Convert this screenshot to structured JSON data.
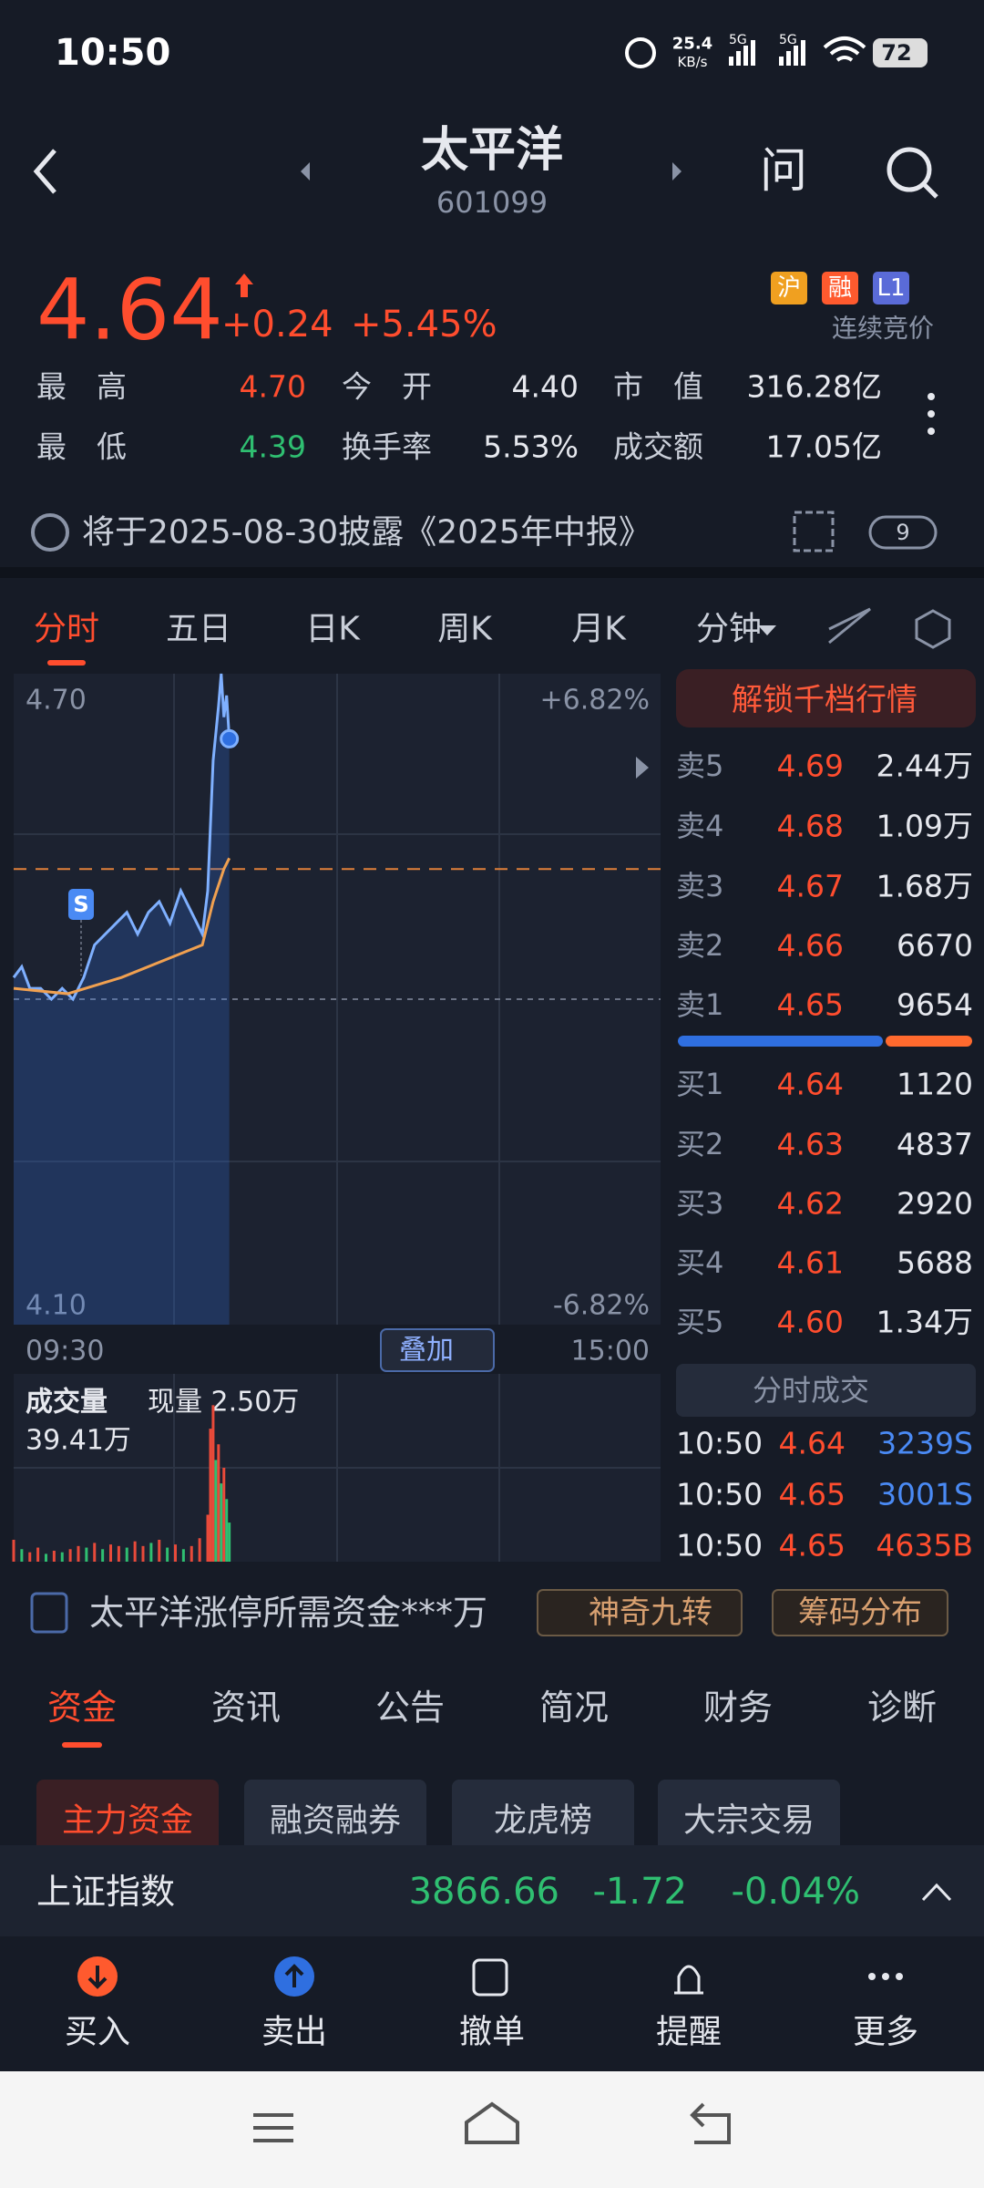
{
  "status_bar": {
    "time": "10:50",
    "net_speed": "25.4",
    "net_unit": "KB/s",
    "signal_1": "5G",
    "signal_2": "5G",
    "battery": "72"
  },
  "header": {
    "title": "太平洋",
    "code": "601099",
    "ask": "问"
  },
  "quote": {
    "price": "4.64",
    "change": "+0.24",
    "change_pct": "+5.45%",
    "tags": [
      "沪",
      "融",
      "L1"
    ],
    "session": "连续竞价"
  },
  "stats": [
    [
      {
        "label": "最高",
        "value": "4.70"
      },
      {
        "label": "今开",
        "value": "4.40"
      },
      {
        "label": "市值",
        "value": "316.28亿"
      }
    ],
    [
      {
        "label": "最低",
        "value": "4.39"
      },
      {
        "label": "换手率",
        "value": "5.53%"
      },
      {
        "label": "成交额",
        "value": "17.05亿"
      }
    ]
  ],
  "notice": {
    "text": "将于2025-08-30披露《2025年中报》",
    "badge": "9"
  },
  "chart_tabs": [
    "分时",
    "五日",
    "日K",
    "周K",
    "月K",
    "分钟"
  ],
  "intraday": {
    "price_top": "4.70",
    "price_bottom": "4.10",
    "pct_top": "+6.82%",
    "pct_bottom": "-6.82%",
    "time_start": "09:30",
    "time_end": "15:00",
    "overlay": "叠加",
    "marker": "S",
    "ylim": [
      4.1,
      4.7
    ],
    "xlim": [
      0,
      240
    ],
    "prev_close": 4.4,
    "reference_level": 4.52,
    "minutes": [
      0,
      3,
      6,
      10,
      14,
      18,
      22,
      26,
      30,
      34,
      38,
      42,
      46,
      50,
      54,
      58,
      62,
      66,
      70,
      72,
      74,
      76,
      77,
      78,
      79,
      80
    ],
    "price": [
      4.42,
      4.43,
      4.41,
      4.41,
      4.4,
      4.41,
      4.4,
      4.42,
      4.45,
      4.46,
      4.47,
      4.48,
      4.46,
      4.48,
      4.49,
      4.47,
      4.5,
      4.48,
      4.46,
      4.5,
      4.62,
      4.67,
      4.7,
      4.66,
      4.68,
      4.64
    ],
    "avg_minutes": [
      0,
      20,
      40,
      60,
      70,
      74,
      78,
      80
    ],
    "avg": [
      4.41,
      4.405,
      4.42,
      4.44,
      4.45,
      4.49,
      4.52,
      4.53
    ]
  },
  "volume": {
    "title": "成交量",
    "current": "现量 2.50万",
    "total": "39.41万",
    "ylim": [
      0,
      12
    ],
    "minutes": [
      0,
      3,
      6,
      9,
      12,
      15,
      18,
      21,
      24,
      27,
      30,
      33,
      36,
      39,
      42,
      45,
      48,
      51,
      54,
      57,
      60,
      63,
      66,
      69,
      72,
      73,
      74,
      75,
      76,
      77,
      78,
      79,
      80
    ],
    "values": [
      1.4,
      0.8,
      0.6,
      0.9,
      0.5,
      0.7,
      0.6,
      0.8,
      1.0,
      0.9,
      1.2,
      0.8,
      1.1,
      1.0,
      0.9,
      1.3,
      1.0,
      1.2,
      1.4,
      0.9,
      1.1,
      0.8,
      1.0,
      1.5,
      3.0,
      8.5,
      10.0,
      6.5,
      7.5,
      5.0,
      6.0,
      4.0,
      2.5
    ],
    "directions": [
      "up",
      "down",
      "up",
      "up",
      "down",
      "up",
      "down",
      "up",
      "up",
      "down",
      "up",
      "down",
      "up",
      "up",
      "down",
      "up",
      "up",
      "down",
      "up",
      "down",
      "up",
      "down",
      "up",
      "up",
      "up",
      "up",
      "up",
      "down",
      "up",
      "down",
      "up",
      "down",
      "down"
    ]
  },
  "order_book": {
    "unlock": "解锁千档行情",
    "sell": [
      {
        "label": "卖5",
        "price": "4.69",
        "volume": "2.44万"
      },
      {
        "label": "卖4",
        "price": "4.68",
        "volume": "1.09万"
      },
      {
        "label": "卖3",
        "price": "4.67",
        "volume": "1.68万"
      },
      {
        "label": "卖2",
        "price": "4.66",
        "volume": "6670"
      },
      {
        "label": "卖1",
        "price": "4.65",
        "volume": "9654"
      }
    ],
    "buy": [
      {
        "label": "买1",
        "price": "4.64",
        "volume": "1120"
      },
      {
        "label": "买2",
        "price": "4.63",
        "volume": "4837"
      },
      {
        "label": "买3",
        "price": "4.62",
        "volume": "2920"
      },
      {
        "label": "买4",
        "price": "4.61",
        "volume": "5688"
      },
      {
        "label": "买5",
        "price": "4.60",
        "volume": "1.34万"
      }
    ]
  },
  "trades": {
    "title": "分时成交",
    "rows": [
      [
        "10:50",
        "4.64",
        "3239S"
      ],
      [
        "10:50",
        "4.65",
        "3001S"
      ],
      [
        "10:50",
        "4.65",
        "4635B"
      ]
    ]
  },
  "promo": {
    "text": "太平洋涨停所需资金***万",
    "buttons": [
      "神奇九转",
      "筹码分布"
    ]
  },
  "section_tabs": [
    "资金",
    "资讯",
    "公告",
    "简况",
    "财务",
    "诊断"
  ],
  "sub_tabs": [
    "主力资金",
    "融资融券",
    "龙虎榜",
    "大宗交易"
  ],
  "index_bar": {
    "name": "上证指数",
    "value": "3866.66",
    "change": "-1.72",
    "change_pct": "-0.04%"
  },
  "bottom_nav": [
    "买入",
    "卖出",
    "撤单",
    "提醒",
    "更多"
  ]
}
